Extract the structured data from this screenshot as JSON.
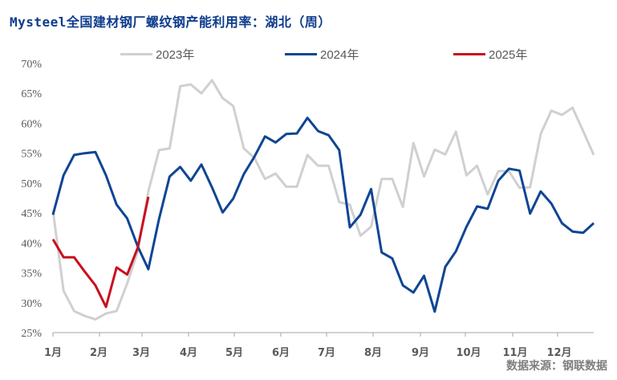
{
  "title": "Mysteel全国建材钢厂螺纹钢产能利用率：湖北（周）",
  "source": "数据来源：钢联数据",
  "colors": {
    "title": "#0d3b8c",
    "series_2023": "#d0d0d0",
    "series_2024": "#0f4594",
    "series_2025": "#c8101e",
    "axis": "#a6a6a6",
    "tick_text": "#595959"
  },
  "legend": [
    {
      "label": "2023年",
      "color": "#d0d0d0"
    },
    {
      "label": "2024年",
      "color": "#0f4594"
    },
    {
      "label": "2025年",
      "color": "#c8101e"
    }
  ],
  "chart_data": {
    "type": "line",
    "title": "Mysteel全国建材钢厂螺纹钢产能利用率：湖北（周）",
    "xlabel": "",
    "ylabel": "",
    "ylim": [
      25,
      70
    ],
    "y_ticks": [
      "70%",
      "65%",
      "60%",
      "55%",
      "50%",
      "45%",
      "40%",
      "35%",
      "30%",
      "25%"
    ],
    "x_ticks": [
      "1月",
      "2月",
      "3月",
      "4月",
      "5月",
      "6月",
      "7月",
      "8月",
      "9月",
      "10月",
      "11月",
      "12月"
    ],
    "x_unit": "week of year (1-52)",
    "grid": false,
    "legend_position": "top",
    "series": [
      {
        "name": "2023年",
        "values": [
          45.4,
          32.0,
          28.6,
          27.8,
          27.2,
          28.2,
          28.6,
          33.2,
          38.6,
          48.6,
          55.5,
          55.8,
          66.2,
          66.5,
          65.0,
          67.2,
          64.2,
          62.9,
          55.8,
          54.2,
          50.7,
          51.6,
          49.4,
          49.4,
          54.7,
          52.9,
          52.9,
          46.8,
          46.4,
          41.2,
          42.7,
          50.7,
          50.7,
          46.0,
          56.7,
          51.1,
          55.6,
          54.8,
          58.6,
          51.3,
          52.9,
          48.1,
          52.0,
          52.0,
          49.2,
          49.3,
          58.2,
          62.1,
          61.4,
          62.6,
          58.7,
          54.7
        ]
      },
      {
        "name": "2024年",
        "values": [
          44.7,
          51.3,
          54.7,
          55.0,
          55.2,
          51.3,
          46.4,
          44.1,
          39.4,
          35.6,
          44.0,
          51.1,
          52.7,
          50.4,
          53.1,
          49.3,
          45.1,
          47.4,
          51.5,
          54.4,
          57.8,
          56.8,
          58.2,
          58.3,
          60.9,
          58.7,
          58.0,
          55.5,
          42.6,
          44.7,
          49.0,
          38.4,
          37.4,
          32.9,
          31.7,
          34.5,
          28.5,
          36.0,
          38.6,
          42.7,
          46.1,
          45.7,
          50.4,
          52.4,
          52.1,
          44.9,
          48.6,
          46.6,
          43.3,
          41.9,
          41.7,
          43.3
        ]
      },
      {
        "name": "2025年",
        "values": [
          40.6,
          37.6,
          37.6,
          35.2,
          32.9,
          29.3,
          35.9,
          34.7,
          39.2,
          47.7
        ]
      }
    ]
  }
}
